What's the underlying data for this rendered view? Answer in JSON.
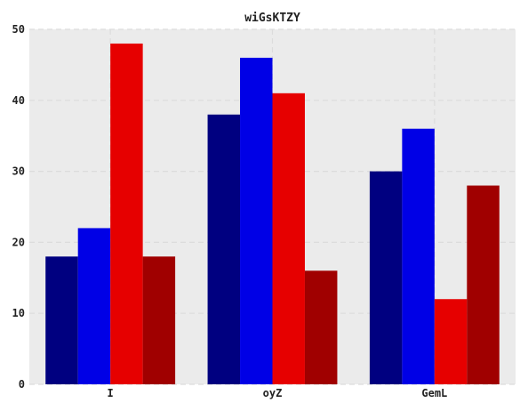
{
  "chart_data": {
    "type": "bar",
    "title": "wiGsKTZY",
    "xlabel": "",
    "ylabel": "",
    "categories": [
      "I",
      "oyZ",
      "GemL"
    ],
    "series": [
      {
        "color": "#000080",
        "values": [
          18,
          38,
          30
        ]
      },
      {
        "color": "#0000e6",
        "values": [
          22,
          46,
          36
        ]
      },
      {
        "color": "#e60000",
        "values": [
          48,
          41,
          12
        ]
      },
      {
        "color": "#a00000",
        "values": [
          18,
          16,
          28
        ]
      }
    ],
    "ylim": [
      0,
      50
    ],
    "yticks": [
      0,
      10,
      20,
      30,
      40,
      50
    ],
    "grid": true,
    "background": "#ebebeb"
  }
}
